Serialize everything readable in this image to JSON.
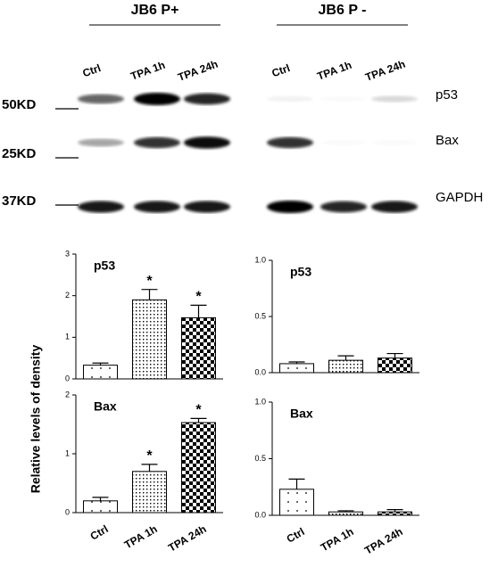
{
  "blot": {
    "groups": [
      {
        "title": "JB6 P+",
        "lanes": [
          "Ctrl",
          "TPA 1h",
          "TPA 24h"
        ]
      },
      {
        "title": "JB6 P -",
        "lanes": [
          "Ctrl",
          "TPA 1h",
          "TPA 24h"
        ]
      }
    ],
    "markers": [
      "50KD",
      "25KD",
      "37KD"
    ],
    "proteins": [
      "p53",
      "Bax",
      "GAPDH"
    ]
  },
  "y_axis_label": "Relative levels of density",
  "chart_data": [
    {
      "type": "bar",
      "label": "p53",
      "categories": [
        null,
        null,
        null
      ],
      "values": [
        0.33,
        1.9,
        1.47
      ],
      "errors": [
        0.05,
        0.25,
        0.3
      ],
      "asterisks": [
        null,
        "*",
        "*"
      ],
      "ylim": [
        0,
        3
      ],
      "yticks": [
        0,
        1,
        2,
        3
      ]
    },
    {
      "type": "bar",
      "label": "p53",
      "categories": [
        null,
        null,
        null
      ],
      "values": [
        0.08,
        0.11,
        0.13
      ],
      "errors": [
        0.015,
        0.04,
        0.04
      ],
      "asterisks": [
        null,
        null,
        null
      ],
      "ylim": [
        0,
        1
      ],
      "yticks": [
        {
          "value": 0,
          "label": "0.0"
        },
        {
          "value": 0.5,
          "label": "0.5"
        },
        {
          "value": 1,
          "label": "1.0"
        }
      ]
    },
    {
      "type": "bar",
      "label": "Bax",
      "categories": [
        "Ctrl",
        "TPA 1h",
        "TPA 24h"
      ],
      "values": [
        0.2,
        0.7,
        1.53
      ],
      "errors": [
        0.06,
        0.12,
        0.07
      ],
      "asterisks": [
        null,
        "*",
        "*"
      ],
      "ylim": [
        0,
        2
      ],
      "yticks": [
        0,
        1,
        2
      ]
    },
    {
      "type": "bar",
      "label": "Bax",
      "categories": [
        "Ctrl",
        "TPA 1h",
        "TPA 24h"
      ],
      "values": [
        0.23,
        0.03,
        0.03
      ],
      "errors": [
        0.09,
        0.01,
        0.02
      ],
      "asterisks": [
        null,
        null,
        null
      ],
      "ylim": [
        0,
        1
      ],
      "yticks": [
        {
          "value": 0,
          "label": "0.0"
        },
        {
          "value": 0.5,
          "label": "0.5"
        },
        {
          "value": 1,
          "label": "1.0"
        }
      ]
    }
  ]
}
